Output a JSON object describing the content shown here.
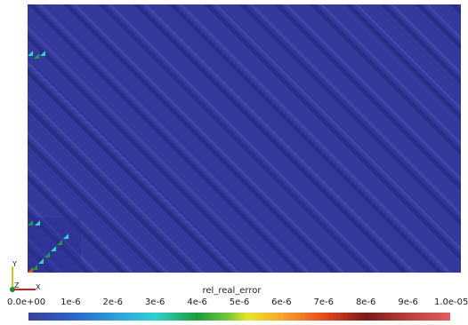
{
  "colorbar": {
    "title": "rel_real_error",
    "ticks": [
      "0.0e+00",
      "1e-6",
      "2e-6",
      "3e-6",
      "4e-6",
      "5e-6",
      "6e-6",
      "7e-6",
      "8e-6",
      "9e-6",
      "1.0e-05"
    ]
  },
  "axes": {
    "y_label": "Y",
    "z_label": "Z",
    "x_label": "X"
  },
  "colors": {
    "field_base": "#35399c",
    "stripe_dark": "#2a2e86",
    "stripe_light": "#4045a8",
    "axis_x": "#cc2222",
    "axis_y": "#d6c21a",
    "axis_z": "#1a8a2a"
  }
}
